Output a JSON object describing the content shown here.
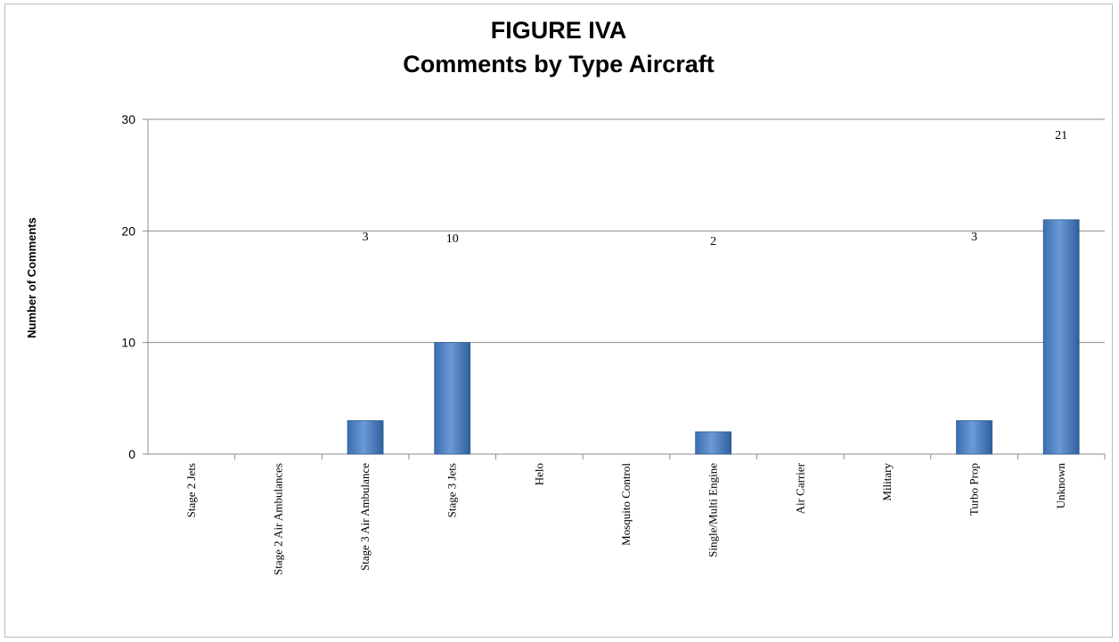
{
  "chart_data": {
    "type": "bar",
    "title_line1": "FIGURE IVA",
    "title_line2": "Comments by Type Aircraft",
    "xlabel": "",
    "ylabel": "Number of Comments",
    "ylim": [
      0,
      30
    ],
    "yticks": [
      0,
      10,
      20,
      30
    ],
    "grid": true,
    "legend": "none",
    "bar_color": "#4a7fc1",
    "categories": [
      "Stage 2 Jets",
      "Stage 2 Air Ambulances",
      "Stage 3 Air Ambulance",
      "Stage 3 Jets",
      "Helo",
      "Mosquito Control",
      "Single/Multi Engine",
      "Air Carrier",
      "Military",
      "Turbo Prop",
      "Unknown"
    ],
    "values": [
      0,
      0,
      3,
      10,
      0,
      0,
      2,
      0,
      0,
      3,
      21
    ],
    "data_labels": [
      "",
      "",
      "3",
      "10",
      "",
      "",
      "2",
      "",
      "",
      "3",
      "21"
    ]
  }
}
